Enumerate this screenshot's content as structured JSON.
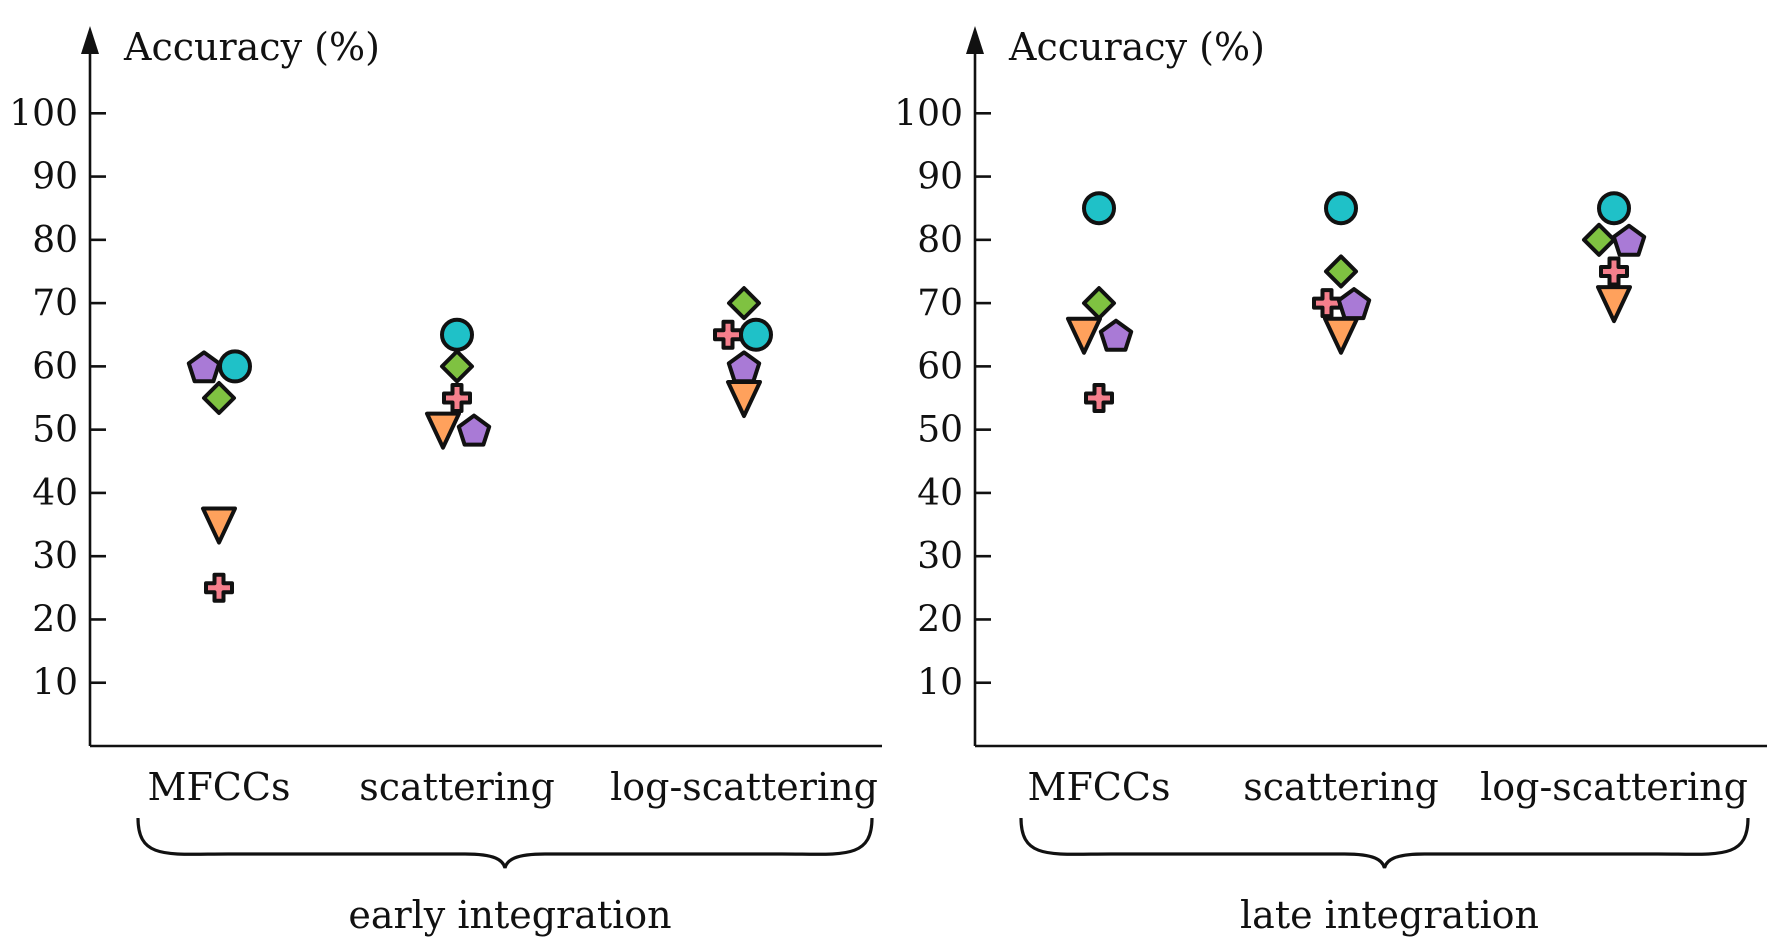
{
  "chart_data": [
    {
      "type": "scatter",
      "ylabel": "Accuracy (%)",
      "yticks": [
        10,
        20,
        30,
        40,
        50,
        60,
        70,
        80,
        90,
        100
      ],
      "ylim": [
        0,
        105
      ],
      "categories": [
        "MFCCs",
        "scattering",
        "log-scattering"
      ],
      "group_label": "early integration",
      "series": [
        {
          "marker": "circle",
          "color": "#1fc1c8",
          "values": [
            60,
            65,
            65
          ]
        },
        {
          "marker": "diamond",
          "color": "#7fc241",
          "values": [
            55,
            60,
            70
          ]
        },
        {
          "marker": "pentagon",
          "color": "#a97ad6",
          "values": [
            60,
            50,
            60
          ]
        },
        {
          "marker": "triangle-down",
          "color": "#ffa15c",
          "values": [
            35,
            50,
            55
          ]
        },
        {
          "marker": "plus",
          "color": "#f57f8c",
          "values": [
            25,
            55,
            65
          ]
        }
      ],
      "grid": false
    },
    {
      "type": "scatter",
      "ylabel": "Accuracy (%)",
      "yticks": [
        10,
        20,
        30,
        40,
        50,
        60,
        70,
        80,
        90,
        100
      ],
      "ylim": [
        0,
        105
      ],
      "categories": [
        "MFCCs",
        "scattering",
        "log-scattering"
      ],
      "group_label": "late integration",
      "series": [
        {
          "marker": "circle",
          "color": "#1fc1c8",
          "values": [
            85,
            85,
            85
          ]
        },
        {
          "marker": "diamond",
          "color": "#7fc241",
          "values": [
            70,
            75,
            80
          ]
        },
        {
          "marker": "pentagon",
          "color": "#a97ad6",
          "values": [
            65,
            70,
            80
          ]
        },
        {
          "marker": "triangle-down",
          "color": "#ffa15c",
          "values": [
            65,
            65,
            70
          ]
        },
        {
          "marker": "plus",
          "color": "#f57f8c",
          "values": [
            55,
            70,
            75
          ]
        }
      ],
      "grid": false
    }
  ]
}
